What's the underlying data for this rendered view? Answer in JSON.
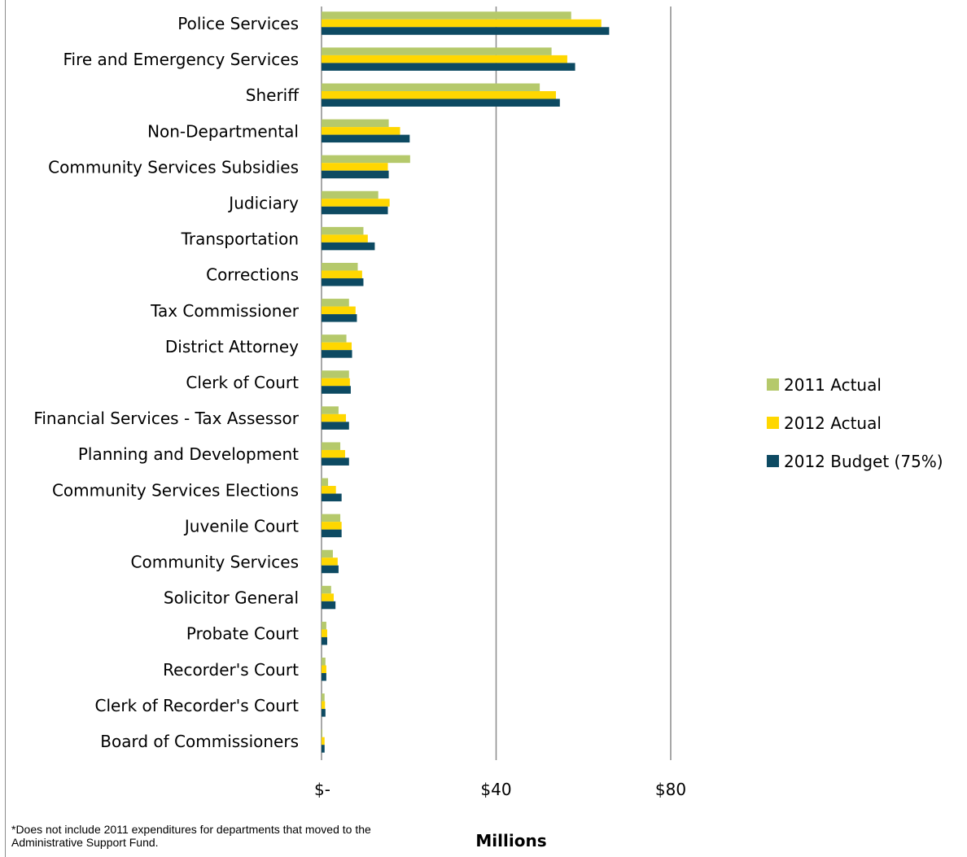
{
  "chart_data": {
    "type": "bar",
    "orientation": "horizontal",
    "categories": [
      "Police Services",
      "Fire and Emergency Services",
      "Sheriff",
      "Non-Departmental",
      "Community Services Subsidies",
      "Judiciary",
      "Transportation",
      "Corrections",
      "Tax Commissioner",
      "District Attorney",
      "Clerk of Court",
      "Financial Services - Tax Assessor",
      "Planning and Development",
      "Community Services Elections",
      "Juvenile Court",
      "Community Services",
      "Solicitor General",
      "Probate Court",
      "Recorder's Court",
      "Clerk of Recorder's Court",
      "Board of Commissioners"
    ],
    "series": [
      {
        "name": "2011 Actual",
        "color": "#b5c96b",
        "values": [
          57.2,
          52.7,
          50.0,
          15.4,
          20.3,
          13.0,
          9.6,
          8.3,
          6.3,
          5.7,
          6.3,
          3.9,
          4.3,
          1.5,
          4.3,
          2.6,
          2.2,
          1.1,
          0.9,
          0.7,
          0.2
        ]
      },
      {
        "name": "2012 Actual",
        "color": "#ffd700",
        "values": [
          64.1,
          56.3,
          53.7,
          18.0,
          15.2,
          15.6,
          10.6,
          9.3,
          7.8,
          6.9,
          6.5,
          5.6,
          5.4,
          3.3,
          4.6,
          3.7,
          2.8,
          1.3,
          1.1,
          0.8,
          0.7
        ]
      },
      {
        "name": "2012 Budget (75%)",
        "color": "#0d4a62",
        "values": [
          65.9,
          58.1,
          54.6,
          20.2,
          15.4,
          15.2,
          12.2,
          9.6,
          8.1,
          7.0,
          6.7,
          6.3,
          6.3,
          4.6,
          4.6,
          3.9,
          3.2,
          1.3,
          1.1,
          0.9,
          0.7
        ]
      }
    ],
    "xticks": [
      {
        "value": 0,
        "label": "$-"
      },
      {
        "value": 40,
        "label": "$40"
      },
      {
        "value": 80,
        "label": "$80"
      }
    ],
    "xlim": [
      0,
      80
    ],
    "xlabel": "Millions",
    "ylabel": "",
    "title": "",
    "grid": "vertical major gridlines",
    "legend_position": "right"
  },
  "footnote": "*Does not include 2011 expenditures for departments that moved to the Administrative Support Fund."
}
